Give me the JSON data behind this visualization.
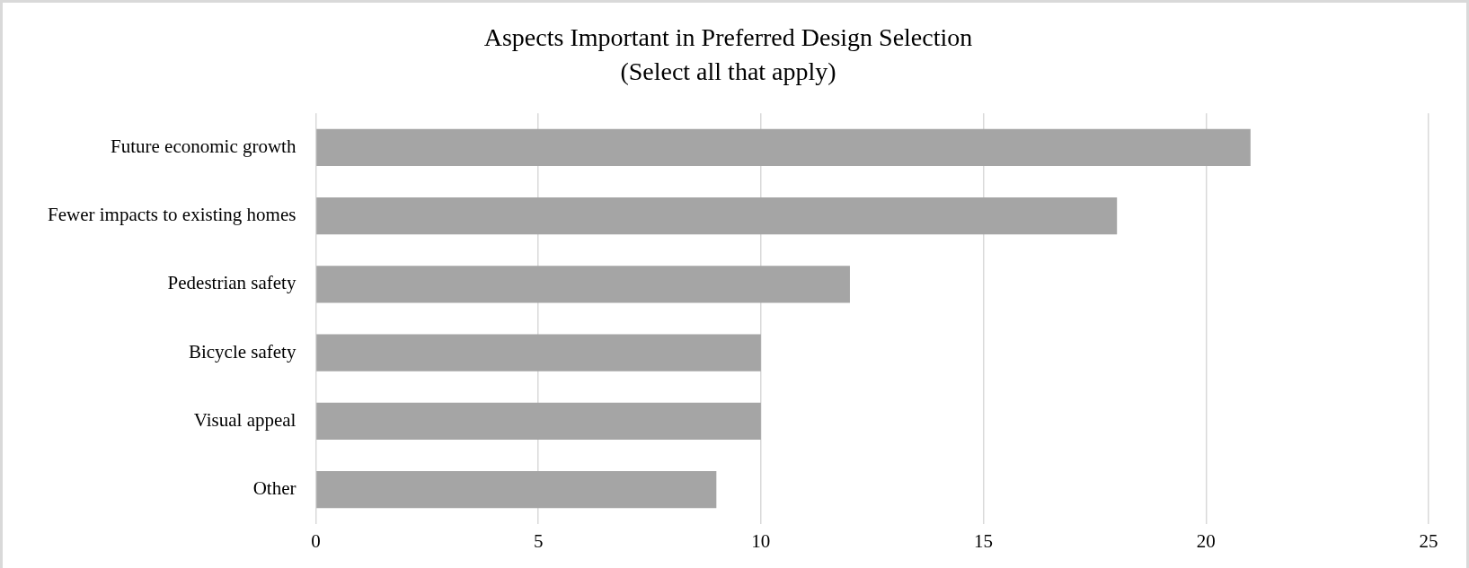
{
  "chart_data": {
    "type": "bar",
    "orientation": "horizontal",
    "title": "Aspects Important in Preferred Design Selection",
    "subtitle": "(Select all that apply)",
    "categories": [
      "Future economic growth",
      "Fewer impacts to existing homes",
      "Pedestrian safety",
      "Bicycle safety",
      "Visual appeal",
      "Other"
    ],
    "values": [
      21,
      18,
      12,
      10,
      10,
      9
    ],
    "color": "#a5a5a5",
    "xlim": [
      0,
      25
    ],
    "xticks": [
      0,
      5,
      10,
      15,
      20,
      25
    ],
    "grid": "x",
    "legend": false
  }
}
